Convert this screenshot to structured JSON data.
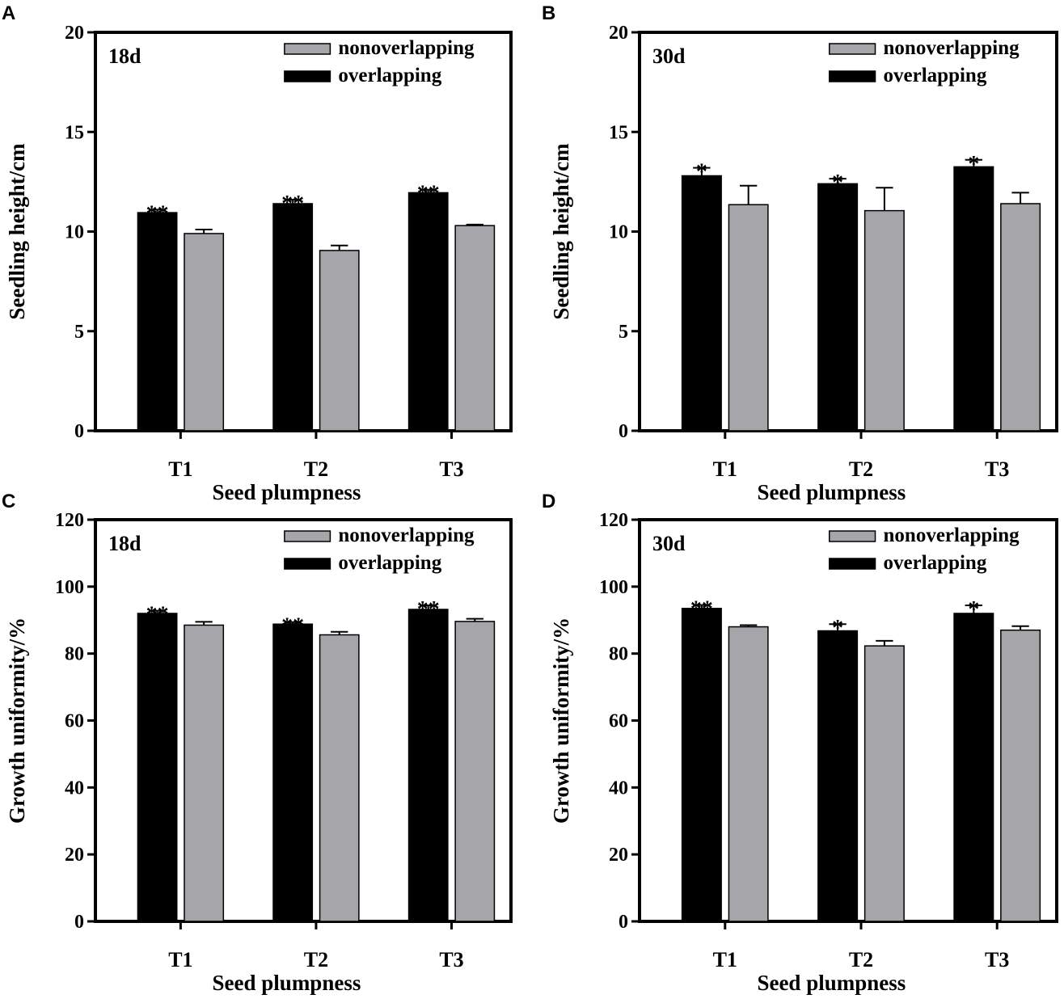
{
  "chart_data": [
    {
      "panel": "A",
      "type": "bar",
      "annotation": "18d",
      "categories": [
        "T1",
        "T2",
        "T3"
      ],
      "series": [
        {
          "name": "overlapping",
          "color": "#000000",
          "values": [
            10.95,
            11.4,
            11.95
          ],
          "errors": [
            0.15,
            0.2,
            0.15
          ],
          "significance": [
            "**",
            "**",
            "**"
          ]
        },
        {
          "name": "nonoverlapping",
          "color": "#a6a6aa",
          "values": [
            9.9,
            9.05,
            10.3
          ],
          "errors": [
            0.2,
            0.25,
            0.05
          ],
          "significance": [
            "",
            "",
            ""
          ]
        }
      ],
      "legend": [
        "nonoverlapping",
        "overlapping"
      ],
      "xlabel": "Seed plumpness",
      "ylabel": "Seedling height/cm",
      "ylim": [
        0,
        20
      ],
      "yticks": [
        0,
        5,
        10,
        15,
        20
      ]
    },
    {
      "panel": "B",
      "type": "bar",
      "annotation": "30d",
      "categories": [
        "T1",
        "T2",
        "T3"
      ],
      "series": [
        {
          "name": "overlapping",
          "color": "#000000",
          "values": [
            12.8,
            12.4,
            13.25
          ],
          "errors": [
            0.4,
            0.25,
            0.35
          ],
          "significance": [
            "*",
            "*",
            "*"
          ]
        },
        {
          "name": "nonoverlapping",
          "color": "#a6a6aa",
          "values": [
            11.35,
            11.05,
            11.4
          ],
          "errors": [
            0.95,
            1.15,
            0.55
          ],
          "significance": [
            "",
            "",
            ""
          ]
        }
      ],
      "legend": [
        "nonoverlapping",
        "overlapping"
      ],
      "xlabel": "Seed plumpness",
      "ylabel": "Seedling height/cm",
      "ylim": [
        0,
        20
      ],
      "yticks": [
        0,
        5,
        10,
        15,
        20
      ]
    },
    {
      "panel": "C",
      "type": "bar",
      "annotation": "18d",
      "categories": [
        "T1",
        "T2",
        "T3"
      ],
      "series": [
        {
          "name": "overlapping",
          "color": "#000000",
          "values": [
            92,
            88.8,
            93.2
          ],
          "errors": [
            0.8,
            0.6,
            1.2
          ],
          "significance": [
            "**",
            "**",
            "**"
          ]
        },
        {
          "name": "nonoverlapping",
          "color": "#a6a6aa",
          "values": [
            88.5,
            85.6,
            89.6
          ],
          "errors": [
            1.0,
            0.9,
            0.8
          ],
          "significance": [
            "",
            "",
            ""
          ]
        }
      ],
      "legend": [
        "nonoverlapping",
        "overlapping"
      ],
      "xlabel": "Seed plumpness",
      "ylabel": "Growth uniformity/%",
      "ylim": [
        0,
        120
      ],
      "yticks": [
        0,
        20,
        40,
        60,
        80,
        100,
        120
      ]
    },
    {
      "panel": "D",
      "type": "bar",
      "annotation": "30d",
      "categories": [
        "T1",
        "T2",
        "T3"
      ],
      "series": [
        {
          "name": "overlapping",
          "color": "#000000",
          "values": [
            93.5,
            86.8,
            92
          ],
          "errors": [
            1.0,
            2.0,
            2.4
          ],
          "significance": [
            "**",
            "*",
            "*"
          ]
        },
        {
          "name": "nonoverlapping",
          "color": "#a6a6aa",
          "values": [
            88,
            82.3,
            87
          ],
          "errors": [
            0.5,
            1.5,
            1.2
          ],
          "significance": [
            "",
            "",
            ""
          ]
        }
      ],
      "legend": [
        "nonoverlapping",
        "overlapping"
      ],
      "xlabel": "Seed plumpness",
      "ylabel": "Growth uniformity/%",
      "ylim": [
        0,
        120
      ],
      "yticks": [
        0,
        20,
        40,
        60,
        80,
        100,
        120
      ]
    }
  ]
}
